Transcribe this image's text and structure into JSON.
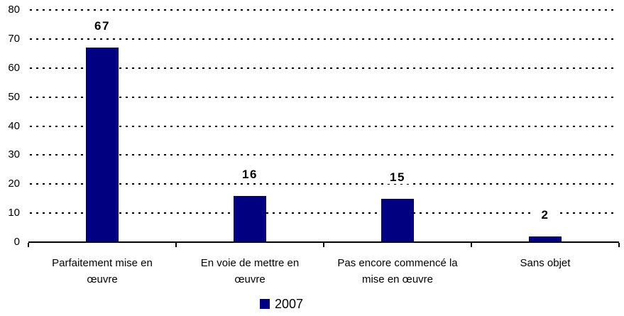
{
  "chart_data": {
    "type": "bar",
    "categories": [
      {
        "label": "Parfaitement mise en œuvre",
        "lines": [
          "Parfaitement mise en",
          "œuvre"
        ]
      },
      {
        "label": "En voie de mettre en œuvre",
        "lines": [
          "En voie de mettre en",
          "œuvre"
        ]
      },
      {
        "label": "Pas encore commencé la mise en œuvre",
        "lines": [
          "Pas encore commencé la",
          "mise en œuvre"
        ]
      },
      {
        "label": "Sans objet",
        "lines": [
          "Sans objet"
        ]
      }
    ],
    "series": [
      {
        "name": "2007",
        "values": [
          67,
          16,
          15,
          2
        ]
      }
    ],
    "value_labels": [
      "67",
      "16",
      "15",
      "2"
    ],
    "title": "",
    "xlabel": "",
    "ylabel": "",
    "ylim": [
      0,
      80
    ],
    "yticks": [
      0,
      10,
      20,
      30,
      40,
      50,
      60,
      70,
      80
    ],
    "grid": "horizontal-dotted",
    "gridline_color": "#000000",
    "legend_position": "bottom-center",
    "bar_color": "#000080",
    "axis_color": "#000000",
    "text_color": "#000000"
  }
}
